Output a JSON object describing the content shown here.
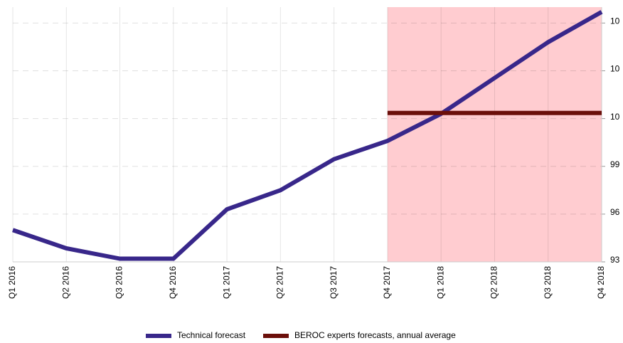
{
  "chart_data": {
    "type": "line",
    "categories": [
      "Q1 2016",
      "Q2 2016",
      "Q3 2016",
      "Q4 2016",
      "Q1 2017",
      "Q2 2017",
      "Q3 2017",
      "Q4 2017",
      "Q1 2018",
      "Q2 2018",
      "Q3 2018",
      "Q4 2018"
    ],
    "series": [
      {
        "name": "Technical forecast",
        "color": "#38278a",
        "values": [
          95.0,
          93.85,
          93.2,
          93.2,
          96.3,
          97.5,
          99.45,
          100.6,
          102.3,
          104.55,
          106.8,
          108.7
        ]
      },
      {
        "name": "BEROC experts forecasts, annual average",
        "color": "#6b0f0a",
        "values": [
          null,
          null,
          null,
          null,
          null,
          null,
          null,
          102.35,
          102.35,
          102.35,
          102.35,
          102.35
        ]
      }
    ],
    "ylim": [
      93,
      109
    ],
    "yticks": [
      93,
      96,
      99,
      {
        "value": 102,
        "label": "10"
      },
      {
        "value": 105,
        "label": "10"
      },
      {
        "value": 108,
        "label": "10"
      }
    ],
    "grid": true
  }
}
